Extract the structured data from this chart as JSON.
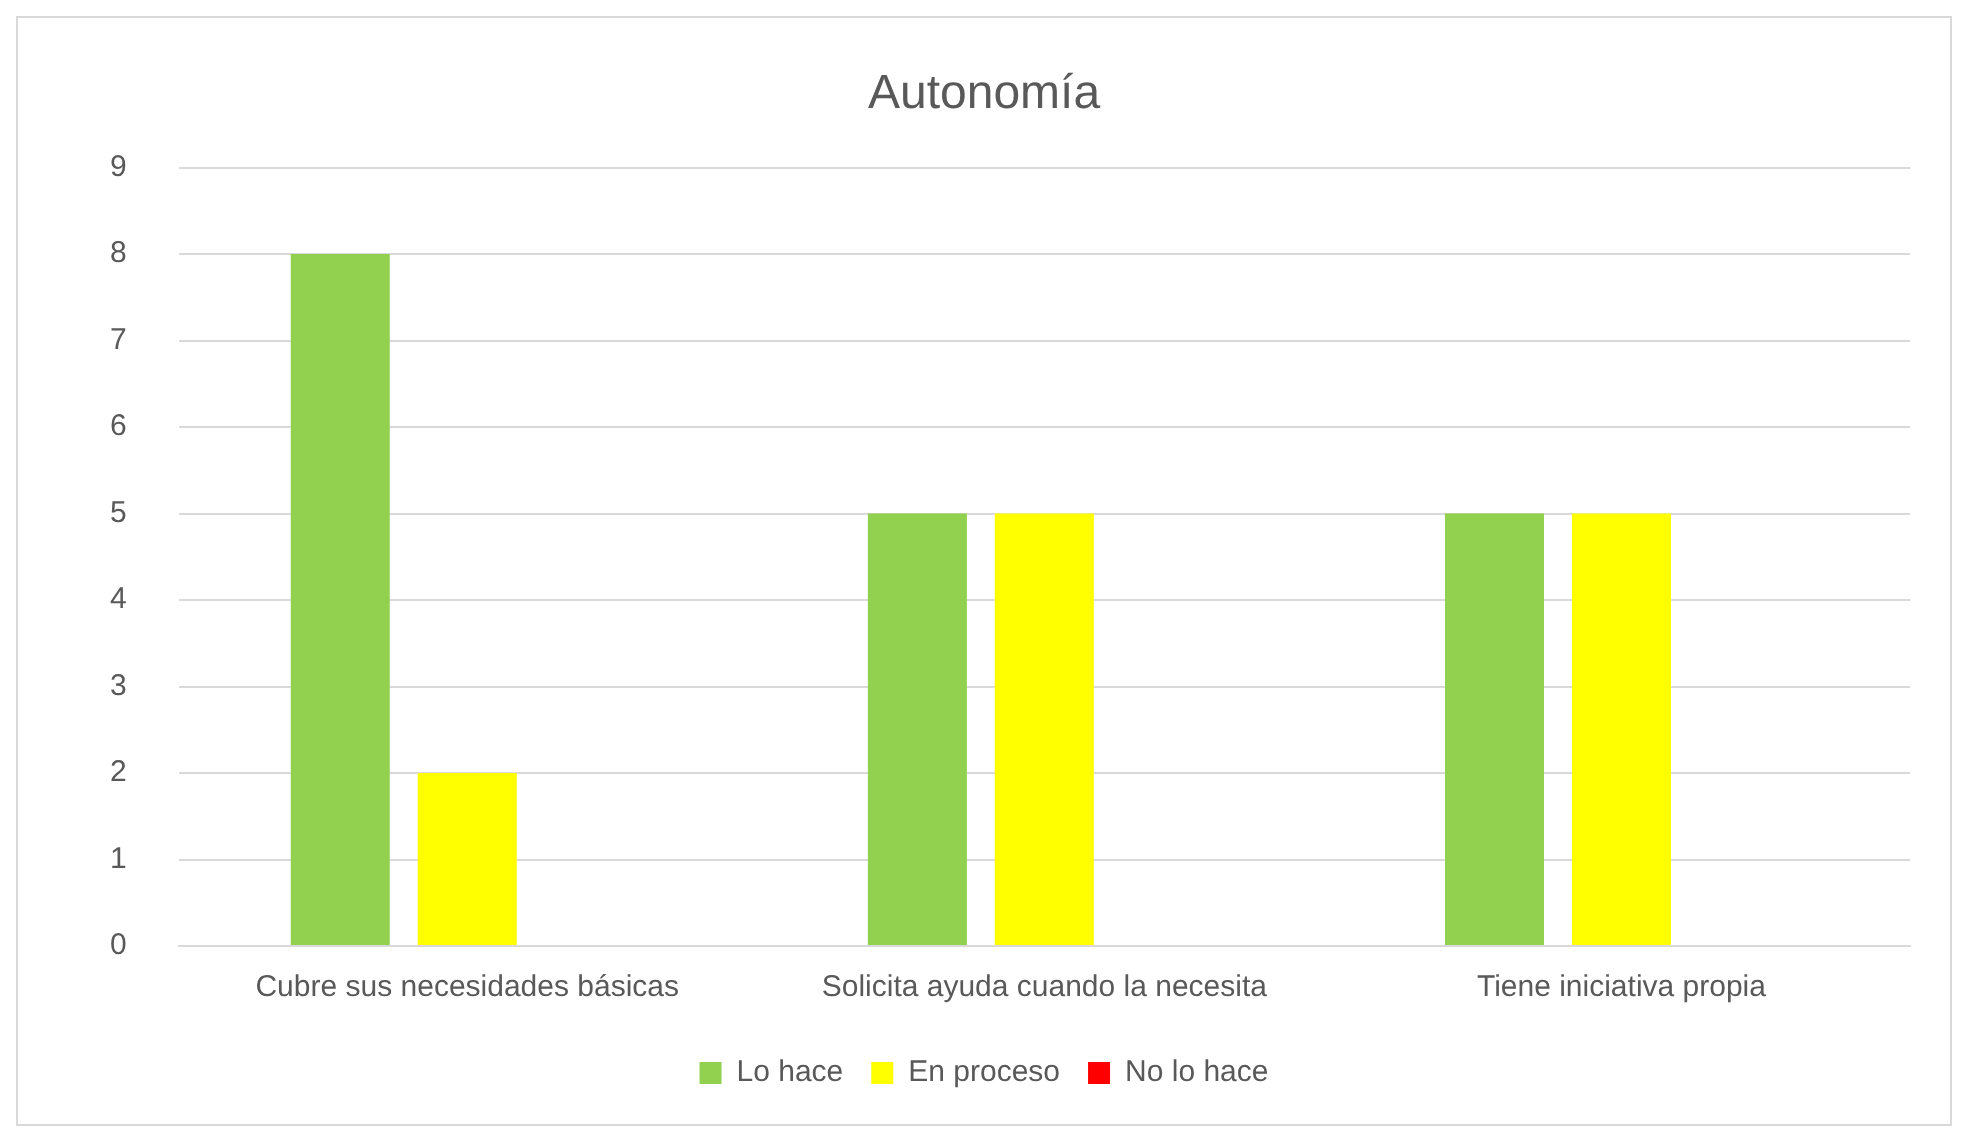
{
  "chart_data": {
    "type": "bar",
    "title": "Autonomía",
    "categories": [
      "Cubre sus necesidades básicas",
      "Solicita ayuda cuando la necesita",
      "Tiene iniciativa propia"
    ],
    "series": [
      {
        "name": "Lo hace",
        "color": "#92d050",
        "values": [
          8,
          5,
          5
        ]
      },
      {
        "name": "En proceso",
        "color": "#ffff00",
        "values": [
          2,
          5,
          5
        ]
      },
      {
        "name": "No lo hace",
        "color": "#ff0000",
        "values": [
          0,
          0,
          0
        ]
      }
    ],
    "ylim": [
      0,
      9
    ],
    "yticks": [
      0,
      1,
      2,
      3,
      4,
      5,
      6,
      7,
      8,
      9
    ],
    "grid": "y",
    "legend": "bottom"
  }
}
